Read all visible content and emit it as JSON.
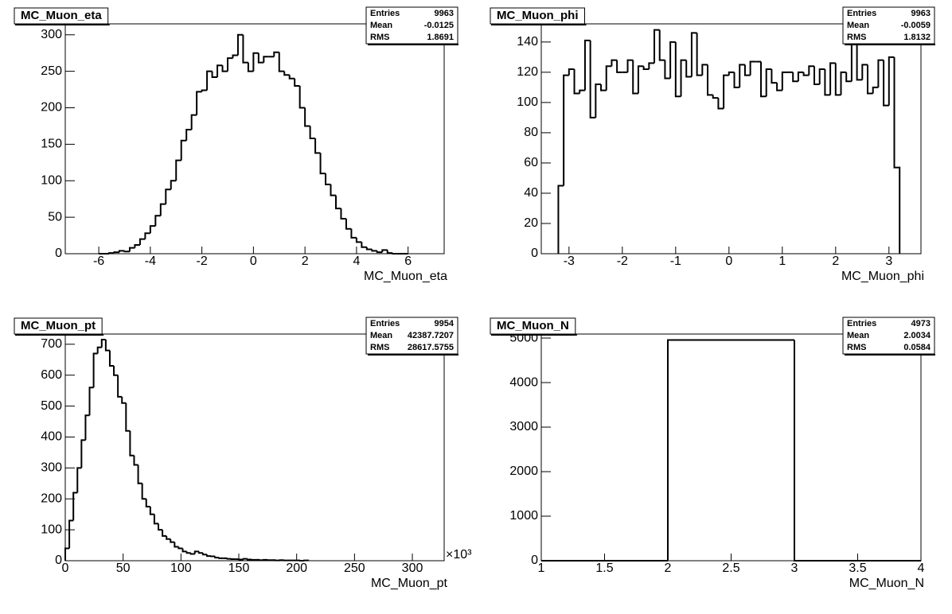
{
  "chart_data": [
    {
      "type": "histogram",
      "title": "MC_Muon_eta",
      "xlabel": "MC_Muon_eta",
      "color": "#000000",
      "bins": [
        -6,
        -5.8,
        -5.6,
        -5.4,
        -5.2,
        -5,
        -4.8,
        -4.6,
        -4.4,
        -4.2,
        -4,
        -3.8,
        -3.6,
        -3.4,
        -3.2,
        -3,
        -2.8,
        -2.6,
        -2.4,
        -2.2,
        -2,
        -1.8,
        -1.6,
        -1.4,
        -1.2,
        -1,
        -0.8,
        -0.6,
        -0.4,
        -0.2,
        0,
        0.2,
        0.4,
        0.6,
        0.8,
        1,
        1.2,
        1.4,
        1.6,
        1.8,
        2,
        2.2,
        2.4,
        2.6,
        2.8,
        3,
        3.2,
        3.4,
        3.6,
        3.8,
        4,
        4.2,
        4.4,
        4.6,
        4.8,
        5,
        5.2,
        5.4,
        5.6,
        5.8,
        6
      ],
      "values": [
        0,
        0,
        1,
        2,
        4,
        3,
        8,
        12,
        20,
        28,
        38,
        52,
        68,
        88,
        100,
        128,
        155,
        170,
        190,
        222,
        224,
        250,
        242,
        258,
        250,
        268,
        272,
        300,
        262,
        250,
        275,
        262,
        270,
        270,
        276,
        250,
        245,
        240,
        230,
        200,
        175,
        158,
        138,
        110,
        95,
        80,
        62,
        48,
        34,
        22,
        16,
        9,
        6,
        4,
        2,
        5,
        1,
        0,
        0,
        0
      ],
      "xlim": [
        -7.3,
        7.4
      ],
      "ylim": [
        0,
        315
      ],
      "xticks": [
        -6,
        -4,
        -2,
        0,
        2,
        4,
        6
      ],
      "yticks": [
        0,
        50,
        100,
        150,
        200,
        250,
        300
      ],
      "stats": [
        {
          "label": "Entries",
          "value": 9963
        },
        {
          "label": "Mean",
          "value": -0.0125
        },
        {
          "label": "RMS",
          "value": 1.8691
        }
      ]
    },
    {
      "type": "histogram",
      "title": "MC_Muon_phi",
      "xlabel": "MC_Muon_phi",
      "color": "#000000",
      "bins": [
        -3.2,
        -3.1,
        -3,
        -2.9,
        -2.8,
        -2.7,
        -2.6,
        -2.5,
        -2.4,
        -2.3,
        -2.2,
        -2.1,
        -2,
        -1.9,
        -1.8,
        -1.7,
        -1.6,
        -1.5,
        -1.4,
        -1.3,
        -1.2,
        -1.1,
        -1,
        -0.9,
        -0.8,
        -0.7,
        -0.6,
        -0.5,
        -0.4,
        -0.3,
        -0.2,
        -0.1,
        0,
        0.1,
        0.2,
        0.3,
        0.4,
        0.5,
        0.6,
        0.7,
        0.8,
        0.9,
        1,
        1.1,
        1.2,
        1.3,
        1.4,
        1.5,
        1.6,
        1.7,
        1.8,
        1.9,
        2,
        2.1,
        2.2,
        2.3,
        2.4,
        2.5,
        2.6,
        2.7,
        2.8,
        2.9,
        3,
        3.1,
        3.2
      ],
      "values": [
        45,
        118,
        122,
        106,
        108,
        141,
        90,
        112,
        108,
        124,
        128,
        120,
        120,
        128,
        106,
        124,
        122,
        126,
        148,
        128,
        116,
        140,
        104,
        128,
        117,
        146,
        118,
        125,
        105,
        103,
        96,
        118,
        120,
        110,
        125,
        118,
        127,
        127,
        104,
        122,
        113,
        108,
        120,
        120,
        114,
        120,
        118,
        124,
        112,
        122,
        105,
        126,
        105,
        120,
        114,
        141,
        115,
        125,
        106,
        110,
        128,
        98,
        130,
        57
      ],
      "xlim": [
        -3.52,
        3.6
      ],
      "ylim": [
        0,
        152
      ],
      "xticks": [
        -3,
        -2,
        -1,
        0,
        1,
        2,
        3
      ],
      "yticks": [
        0,
        20,
        40,
        60,
        80,
        100,
        120,
        140
      ],
      "stats": [
        {
          "label": "Entries",
          "value": 9963
        },
        {
          "label": "Mean",
          "value": -0.0059
        },
        {
          "label": "RMS",
          "value": 1.8132
        }
      ]
    },
    {
      "type": "histogram",
      "title": "MC_Muon_pt",
      "xlabel": "MC_Muon_pt",
      "x_multiplier": "×10³",
      "color": "#000000",
      "bins": [
        0,
        3.5,
        7,
        10.5,
        14,
        17.5,
        21,
        24.5,
        28,
        31.5,
        35,
        38.5,
        42,
        45.5,
        49,
        52.5,
        56,
        59.5,
        63,
        66.5,
        70,
        73.5,
        77,
        80.5,
        84,
        87.5,
        91,
        94.5,
        98,
        101.5,
        105,
        108.5,
        112,
        115.5,
        119,
        122.5,
        126,
        129.5,
        133,
        136.5,
        140,
        143.5,
        147,
        150.5,
        154,
        157.5,
        161,
        164.5,
        168,
        171.5,
        175,
        178.5,
        182,
        185.5,
        189,
        192.5,
        196,
        199.5,
        203,
        206.5,
        210
      ],
      "values": [
        40,
        130,
        220,
        300,
        390,
        470,
        560,
        670,
        690,
        715,
        680,
        630,
        600,
        530,
        510,
        420,
        340,
        310,
        250,
        200,
        175,
        150,
        120,
        100,
        80,
        70,
        60,
        45,
        40,
        30,
        25,
        22,
        30,
        25,
        20,
        15,
        14,
        10,
        8,
        8,
        6,
        5,
        5,
        4,
        6,
        4,
        3,
        3,
        2,
        3,
        2,
        2,
        1,
        2,
        1,
        1,
        1,
        1,
        0,
        1
      ],
      "xlim": [
        0,
        327.5
      ],
      "ylim": [
        0,
        733
      ],
      "xticks": [
        0,
        50,
        100,
        150,
        200,
        250,
        300
      ],
      "yticks": [
        0,
        100,
        200,
        300,
        400,
        500,
        600,
        700
      ],
      "stats": [
        {
          "label": "Entries",
          "value": 9954
        },
        {
          "label": "Mean",
          "value": 42387.7207
        },
        {
          "label": "RMS",
          "value": 28617.5755
        }
      ]
    },
    {
      "type": "histogram",
      "title": "MC_Muon_N",
      "xlabel": "MC_Muon_N",
      "color": "#000000",
      "bins": [
        1,
        2,
        3,
        4
      ],
      "values": [
        0,
        4956,
        0
      ],
      "xlim": [
        1,
        4
      ],
      "ylim": [
        0,
        5090
      ],
      "xticks": [
        1,
        1.5,
        2,
        2.5,
        3,
        3.5,
        4
      ],
      "yticks": [
        0,
        1000,
        2000,
        3000,
        4000,
        5000
      ],
      "stats": [
        {
          "label": "Entries",
          "value": 4973
        },
        {
          "label": "Mean",
          "value": 2.0034
        },
        {
          "label": "RMS",
          "value": 0.0584
        }
      ]
    }
  ]
}
